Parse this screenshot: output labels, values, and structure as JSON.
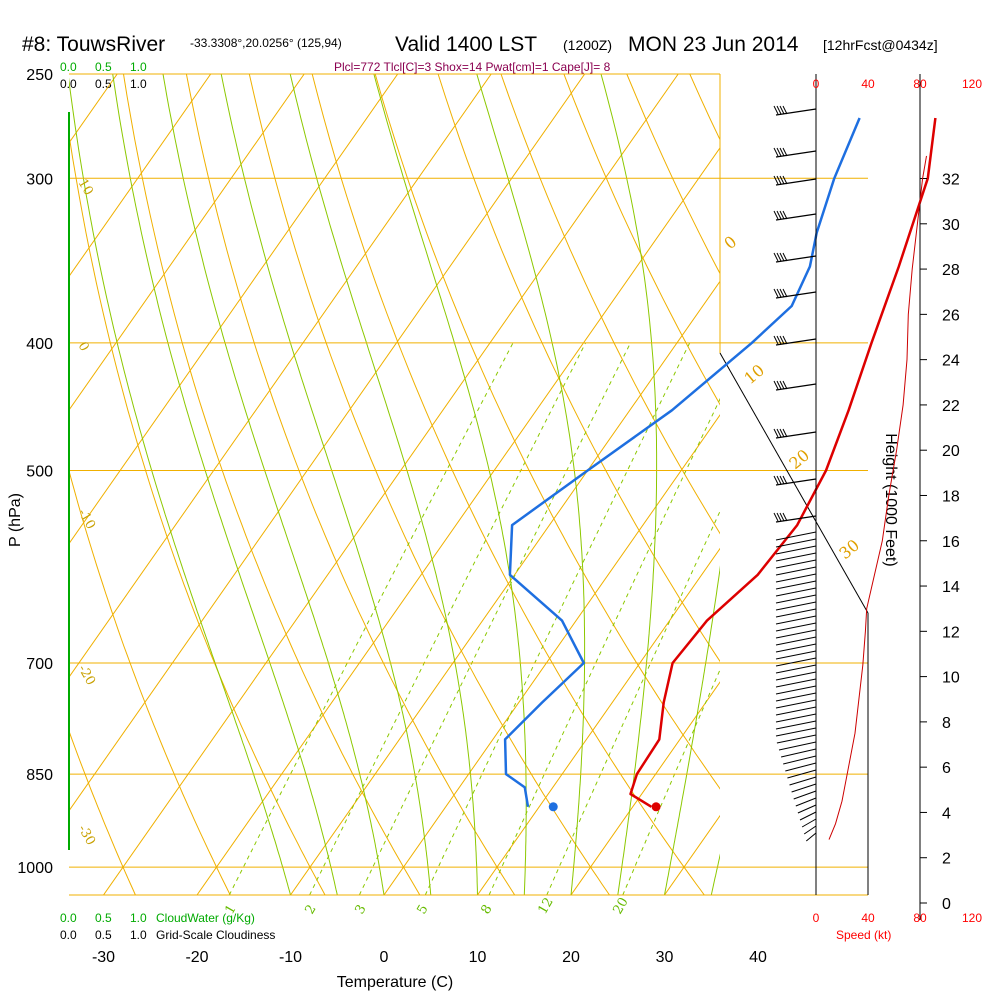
{
  "header": {
    "station": "#8: TouwsRiver",
    "coords": "-33.3308°,20.0256° (125,94)",
    "valid": "Valid 1400 LST",
    "valid_z": "(1200Z)",
    "date": "MON 23 Jun 2014",
    "forecast": "[12hrFcst@0434z]"
  },
  "stats": "Plcl=772 Tlcl[C]=3 Shox=14 Pwat[cm]=1 Cape[J]= 8",
  "legends": {
    "cloudwater_ticks": [
      "0.0",
      "0.5",
      "1.0"
    ],
    "cloudiness_ticks": [
      "0.0",
      "0.5",
      "1.0"
    ],
    "cloudwater_label": "CloudWater (g/Kg)",
    "cloudiness_label": "Grid-Scale Cloudiness",
    "speed_ticks": [
      "0",
      "40",
      "80",
      "120"
    ],
    "speed_label": "Speed (kt)"
  },
  "colors": {
    "temperature": "#dd0000",
    "dewpoint": "#1e6fe0",
    "isotherm": "#f0b000",
    "dry_adiabat": "#f0b000",
    "moist_adiabat": "#8cc800",
    "mixing_ratio": "#8cc800",
    "cloud": "#00aa00",
    "speed": "#cc0000"
  },
  "chart_data": {
    "type": "line",
    "title": "#8: TouwsRiver",
    "xlabel": "Temperature (C)",
    "ylabel": "P (hPa)",
    "y2label": "Height (1000 Feet)",
    "x_ticks": [
      -30,
      -20,
      -10,
      0,
      10,
      20,
      30,
      40
    ],
    "p_ticks": [
      250,
      300,
      400,
      500,
      700,
      850,
      1000
    ],
    "height_ticks": [
      0,
      2,
      4,
      6,
      8,
      10,
      12,
      14,
      16,
      18,
      20,
      22,
      24,
      26,
      28,
      30,
      32
    ],
    "isotherm_labels": [
      "10",
      "0",
      "-10",
      "-20",
      "-30"
    ],
    "adiabat_labels": [
      "0",
      "10",
      "20",
      "30"
    ],
    "mixing_ratio_labels": [
      "1",
      "2",
      "3",
      "5",
      "8",
      "12",
      "20"
    ],
    "series": [
      {
        "key": "temperature",
        "points": [
          {
            "p": 270,
            "t": 0.8
          },
          {
            "p": 300,
            "t": 4.5
          },
          {
            "p": 350,
            "t": 8.0
          },
          {
            "p": 400,
            "t": 10.8
          },
          {
            "p": 450,
            "t": 13.4
          },
          {
            "p": 500,
            "t": 15.5
          },
          {
            "p": 550,
            "t": 16.5
          },
          {
            "p": 600,
            "t": 16.0
          },
          {
            "p": 650,
            "t": 14.0
          },
          {
            "p": 700,
            "t": 13.5
          },
          {
            "p": 750,
            "t": 15.5
          },
          {
            "p": 800,
            "t": 17.8
          },
          {
            "p": 850,
            "t": 18.0
          },
          {
            "p": 880,
            "t": 18.8
          },
          {
            "p": 900,
            "t": 22.0
          }
        ]
      },
      {
        "key": "dewpoint",
        "points": [
          {
            "p": 270,
            "t": -7.3
          },
          {
            "p": 300,
            "t": -5.5
          },
          {
            "p": 330,
            "t": -3.3
          },
          {
            "p": 350,
            "t": -1.5
          },
          {
            "p": 375,
            "t": -0.5
          },
          {
            "p": 400,
            "t": -2.0
          },
          {
            "p": 450,
            "t": -5.5
          },
          {
            "p": 500,
            "t": -10.0
          },
          {
            "p": 550,
            "t": -14.0
          },
          {
            "p": 600,
            "t": -10.5
          },
          {
            "p": 650,
            "t": -1.5
          },
          {
            "p": 700,
            "t": 4.0
          },
          {
            "p": 750,
            "t": 2.5
          },
          {
            "p": 800,
            "t": 1.3
          },
          {
            "p": 850,
            "t": 4.0
          },
          {
            "p": 870,
            "t": 7.0
          },
          {
            "p": 900,
            "t": 8.8
          }
        ]
      }
    ],
    "surface": {
      "p": 900,
      "temperature": 22.5,
      "dewpoint": 11.5
    },
    "wind_speed": {
      "x_ticks": [
        0,
        40,
        80,
        120
      ],
      "points": [
        {
          "h": 2.8,
          "s": 10
        },
        {
          "h": 3.5,
          "s": 15
        },
        {
          "h": 4.5,
          "s": 20
        },
        {
          "h": 6.0,
          "s": 25
        },
        {
          "h": 7.5,
          "s": 30
        },
        {
          "h": 9.0,
          "s": 33
        },
        {
          "h": 10.5,
          "s": 36
        },
        {
          "h": 12.0,
          "s": 38
        },
        {
          "h": 13.0,
          "s": 39
        },
        {
          "h": 14.0,
          "s": 43
        },
        {
          "h": 16.0,
          "s": 51
        },
        {
          "h": 18.0,
          "s": 56
        },
        {
          "h": 20.0,
          "s": 62
        },
        {
          "h": 22.0,
          "s": 67
        },
        {
          "h": 24.0,
          "s": 70
        },
        {
          "h": 26.0,
          "s": 71
        },
        {
          "h": 28.0,
          "s": 74
        },
        {
          "h": 30.0,
          "s": 78
        },
        {
          "h": 32.0,
          "s": 82
        },
        {
          "h": 33.0,
          "s": 85
        }
      ]
    }
  }
}
